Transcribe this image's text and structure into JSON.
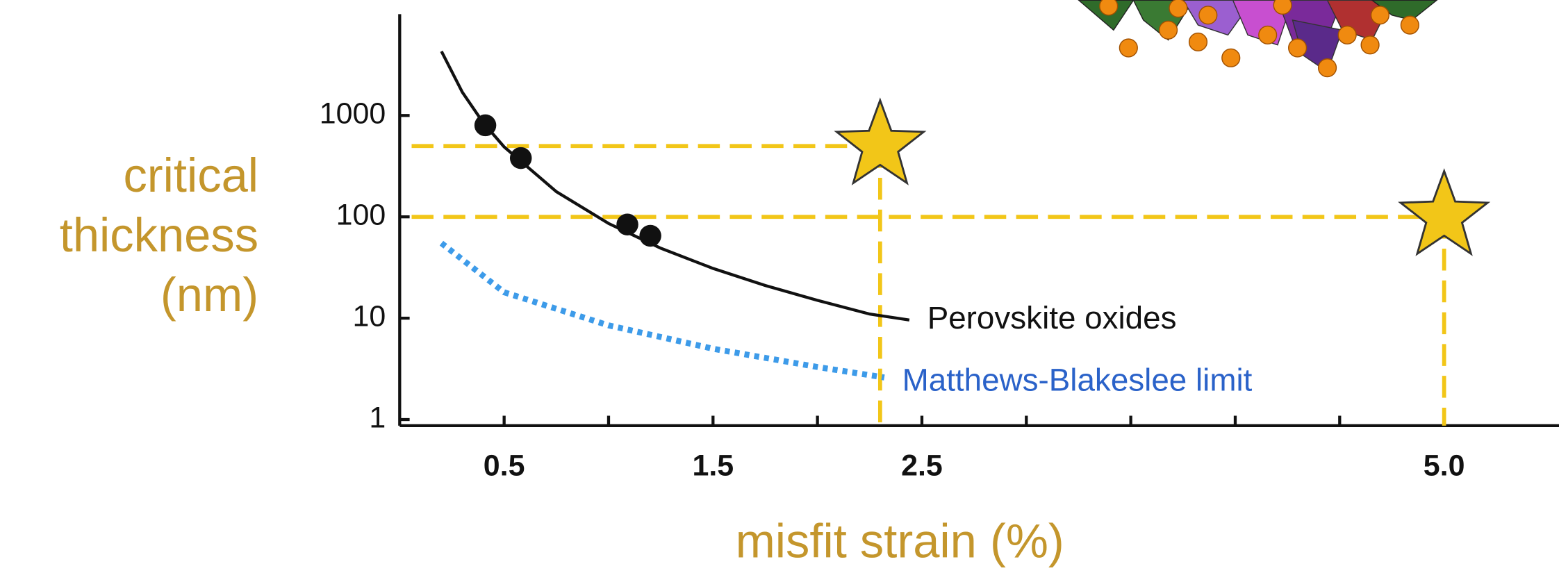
{
  "chart_data": {
    "type": "line",
    "xlabel": "misfit strain (%)",
    "ylabel": [
      "critical",
      "thickness",
      "(nm)"
    ],
    "yscale": "log",
    "xlim": [
      0,
      5.55
    ],
    "ylim": [
      0.87,
      10000
    ],
    "xticks": [
      0.5,
      1.5,
      2.5,
      {
        "value": 5,
        "label": "5.0"
      }
    ],
    "x_minor_ticks": [
      1,
      2,
      3,
      3.5,
      4,
      4.5
    ],
    "yticks": [
      1,
      10,
      100,
      1000
    ],
    "series": [
      {
        "name": "Perovskite oxides",
        "color": "#111111",
        "style": "solid",
        "x": [
          0.2,
          0.3,
          0.4,
          0.5,
          0.75,
          1.0,
          1.25,
          1.5,
          1.75,
          2.0,
          2.25,
          2.44
        ],
        "values": [
          4300,
          1700,
          850,
          490,
          177,
          86,
          49,
          31,
          21,
          15,
          11,
          9.6
        ],
        "points": {
          "x": [
            0.41,
            0.58,
            1.09,
            1.2
          ],
          "values": [
            800,
            380,
            84,
            65
          ]
        }
      },
      {
        "name": "Matthews-Blakeslee limit",
        "color": "#3d9be9",
        "label_color": "#2a62c9",
        "style": "dotted",
        "x": [
          0.2,
          0.5,
          1.0,
          1.5,
          2.0,
          2.32
        ],
        "values": [
          55,
          18,
          8.5,
          5,
          3.3,
          2.6
        ]
      }
    ],
    "targets": {
      "color": "#f2c618",
      "x": [
        2.3,
        5
      ],
      "values": [
        500,
        100
      ]
    }
  }
}
